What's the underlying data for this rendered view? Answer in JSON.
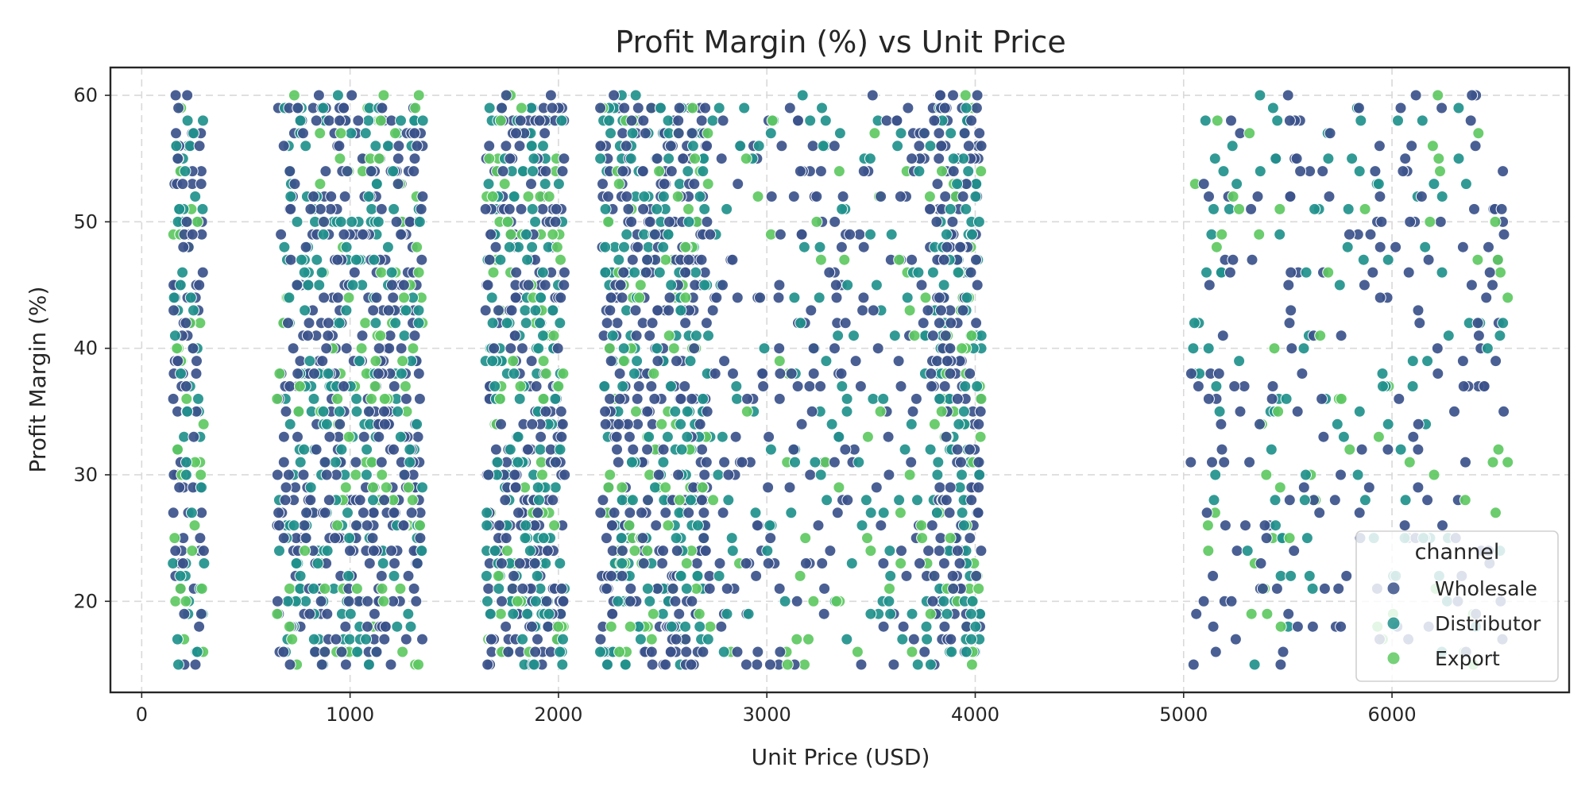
{
  "chart_data": {
    "type": "scatter",
    "title": "Profit Margin (%) vs Unit Price",
    "xlabel": "Unit Price (USD)",
    "ylabel": "Profit Margin (%)",
    "xlim": [
      -150,
      6850
    ],
    "ylim": [
      12.8,
      62.2
    ],
    "xticks": [
      0,
      1000,
      2000,
      3000,
      4000,
      5000,
      6000
    ],
    "yticks": [
      20,
      30,
      40,
      50,
      60
    ],
    "grid": true,
    "legend": {
      "title": "channel",
      "placement": "bottom-right",
      "entries": [
        "Wholesale",
        "Distributor",
        "Export"
      ]
    },
    "series": [
      {
        "name": "Wholesale",
        "color": "#3b528b",
        "clusters": [
          {
            "x_range": [
              150,
              300
            ],
            "y_range": [
              15,
              60
            ],
            "count": 90
          },
          {
            "x_range": [
              650,
              1350
            ],
            "y_range": [
              15,
              60
            ],
            "count": 380
          },
          {
            "x_range": [
              1650,
              2030
            ],
            "y_range": [
              15,
              60
            ],
            "count": 260
          },
          {
            "x_range": [
              2200,
              2720
            ],
            "y_range": [
              15,
              60
            ],
            "count": 330
          },
          {
            "x_range": [
              2720,
              3780
            ],
            "y_range": [
              15,
              60
            ],
            "count": 190
          },
          {
            "x_range": [
              3780,
              4030
            ],
            "y_range": [
              15,
              60
            ],
            "count": 170
          },
          {
            "x_range": [
              5030,
              6560
            ],
            "y_range": [
              15,
              60
            ],
            "count": 190
          }
        ]
      },
      {
        "name": "Distributor",
        "color": "#21918c",
        "clusters": [
          {
            "x_range": [
              150,
              300
            ],
            "y_range": [
              15,
              60
            ],
            "count": 60
          },
          {
            "x_range": [
              650,
              1350
            ],
            "y_range": [
              15,
              60
            ],
            "count": 230
          },
          {
            "x_range": [
              1650,
              2030
            ],
            "y_range": [
              15,
              60
            ],
            "count": 170
          },
          {
            "x_range": [
              2200,
              2720
            ],
            "y_range": [
              15,
              60
            ],
            "count": 200
          },
          {
            "x_range": [
              2720,
              3780
            ],
            "y_range": [
              15,
              60
            ],
            "count": 110
          },
          {
            "x_range": [
              3780,
              4030
            ],
            "y_range": [
              15,
              60
            ],
            "count": 110
          },
          {
            "x_range": [
              5030,
              6560
            ],
            "y_range": [
              15,
              60
            ],
            "count": 110
          }
        ]
      },
      {
        "name": "Export",
        "color": "#5ec962",
        "clusters": [
          {
            "x_range": [
              150,
              300
            ],
            "y_range": [
              15,
              60
            ],
            "count": 30
          },
          {
            "x_range": [
              650,
              1350
            ],
            "y_range": [
              15,
              60
            ],
            "count": 110
          },
          {
            "x_range": [
              1650,
              2030
            ],
            "y_range": [
              15,
              60
            ],
            "count": 80
          },
          {
            "x_range": [
              2200,
              2720
            ],
            "y_range": [
              15,
              60
            ],
            "count": 90
          },
          {
            "x_range": [
              2720,
              3780
            ],
            "y_range": [
              15,
              60
            ],
            "count": 50
          },
          {
            "x_range": [
              3780,
              4030
            ],
            "y_range": [
              15,
              60
            ],
            "count": 50
          },
          {
            "x_range": [
              5030,
              6560
            ],
            "y_range": [
              15,
              60
            ],
            "count": 60
          }
        ]
      }
    ]
  }
}
